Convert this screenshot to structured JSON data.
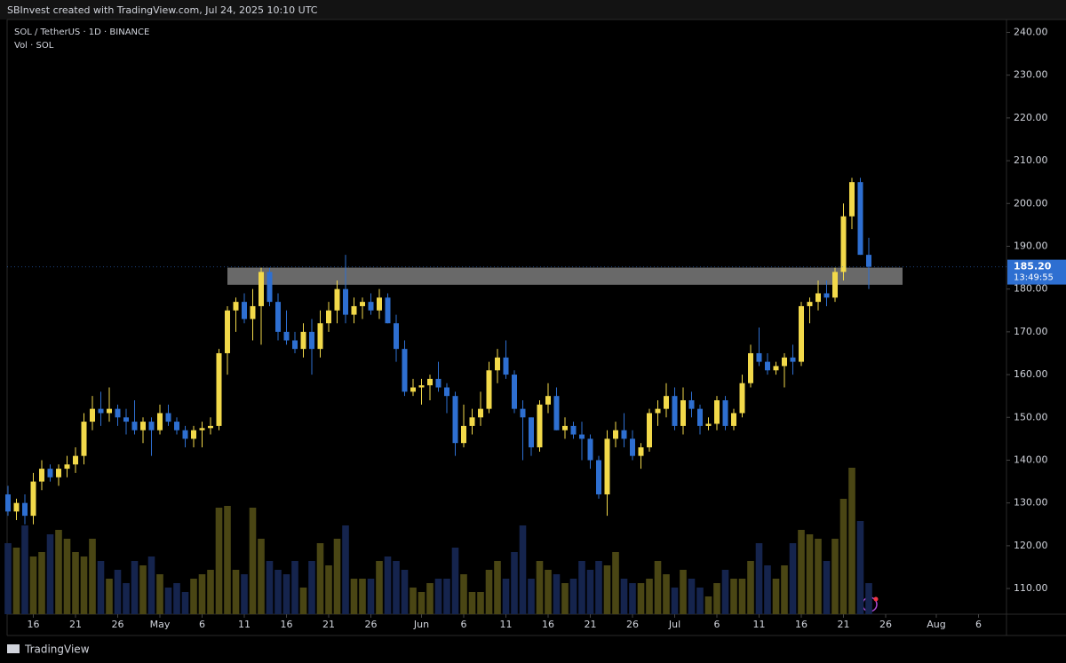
{
  "chart_data": {
    "type": "candlestick",
    "attribution": "SBInvest created with TradingView.com, Jul 24, 2025 10:10 UTC",
    "title": "SOL / TetherUS · 1D · BINANCE",
    "subtitle": "Vol · SOL",
    "brand": "TradingView",
    "up_color": "#f2d94a",
    "down_color": "#2e6fd1",
    "up_volume_color": "#4a4614",
    "down_volume_color": "#15244d",
    "x": [
      "Apr 13",
      "Apr 14",
      "Apr 15",
      "Apr 16",
      "Apr 17",
      "Apr 18",
      "Apr 19",
      "Apr 20",
      "Apr 21",
      "Apr 22",
      "Apr 23",
      "Apr 24",
      "Apr 25",
      "Apr 26",
      "Apr 27",
      "Apr 28",
      "Apr 29",
      "Apr 30",
      "May 1",
      "May 2",
      "May 3",
      "May 4",
      "May 5",
      "May 6",
      "May 7",
      "May 8",
      "May 9",
      "May 10",
      "May 11",
      "May 12",
      "May 13",
      "May 14",
      "May 15",
      "May 16",
      "May 17",
      "May 18",
      "May 19",
      "May 20",
      "May 21",
      "May 22",
      "May 23",
      "May 24",
      "May 25",
      "May 26",
      "May 27",
      "May 28",
      "May 29",
      "May 30",
      "May 31",
      "Jun 1",
      "Jun 2",
      "Jun 3",
      "Jun 4",
      "Jun 5",
      "Jun 6",
      "Jun 7",
      "Jun 8",
      "Jun 9",
      "Jun 10",
      "Jun 11",
      "Jun 12",
      "Jun 13",
      "Jun 14",
      "Jun 15",
      "Jun 16",
      "Jun 17",
      "Jun 18",
      "Jun 19",
      "Jun 20",
      "Jun 21",
      "Jun 22",
      "Jun 23",
      "Jun 24",
      "Jun 25",
      "Jun 26",
      "Jun 27",
      "Jun 28",
      "Jun 29",
      "Jun 30",
      "Jul 1",
      "Jul 2",
      "Jul 3",
      "Jul 4",
      "Jul 5",
      "Jul 6",
      "Jul 7",
      "Jul 8",
      "Jul 9",
      "Jul 10",
      "Jul 11",
      "Jul 12",
      "Jul 13",
      "Jul 14",
      "Jul 15",
      "Jul 16",
      "Jul 17",
      "Jul 18",
      "Jul 19",
      "Jul 20",
      "Jul 21",
      "Jul 22",
      "Jul 23",
      "Jul 24",
      "Jul 25",
      "Jul 26",
      "Jul 27",
      "Jul 28",
      "Jul 29",
      "Jul 30",
      "Jul 31",
      "Aug 1",
      "Aug 2",
      "Aug 3",
      "Aug 4",
      "Aug 5",
      "Aug 6",
      "Aug 7",
      "Aug 8"
    ],
    "open": [
      132,
      128,
      130,
      127,
      135,
      138,
      136,
      138,
      139,
      141,
      149,
      152,
      151,
      152,
      150,
      149,
      147,
      149,
      147,
      151,
      149,
      147,
      145,
      147,
      147.5,
      148,
      165,
      175,
      177,
      173,
      176,
      184,
      177,
      170,
      168,
      166,
      170,
      166,
      172,
      175,
      180,
      174,
      176,
      177,
      175,
      178,
      172,
      166,
      156,
      157,
      157.5,
      159,
      157,
      155,
      144,
      148,
      150,
      152,
      161,
      164,
      160,
      152,
      150,
      143,
      153,
      155,
      147,
      148,
      146,
      145,
      140,
      132,
      145,
      147,
      145,
      141,
      143,
      151,
      152,
      155,
      148,
      154,
      152,
      148,
      148.5,
      154,
      148,
      151,
      158,
      165,
      163,
      161,
      162,
      164,
      163,
      176,
      177,
      179,
      178,
      184,
      197,
      205,
      188,
      null,
      null,
      null,
      null,
      null,
      null,
      null,
      null,
      null,
      null,
      null,
      null,
      null,
      null,
      null
    ],
    "high": [
      134,
      131,
      132,
      137,
      140,
      139,
      139,
      141,
      143,
      151,
      155,
      156,
      157,
      153,
      152,
      154,
      150,
      150,
      153,
      153,
      150,
      148,
      148,
      149,
      150,
      166,
      176,
      178,
      179,
      180,
      185,
      185,
      179,
      175,
      170,
      172,
      173,
      175,
      177,
      182,
      188,
      178,
      178,
      179,
      180,
      179,
      174,
      168,
      159,
      159,
      160,
      163,
      158,
      156,
      153,
      152,
      156,
      163,
      166,
      168,
      161,
      154,
      150,
      154,
      158,
      157,
      150,
      149,
      149,
      146,
      141,
      147,
      149,
      151,
      147,
      144,
      152,
      154,
      158,
      157,
      157,
      156,
      153,
      150,
      155,
      155,
      152,
      160,
      167,
      171,
      165,
      163,
      165,
      167,
      177,
      178,
      182,
      182,
      185,
      200,
      206,
      206,
      192,
      null,
      null,
      null,
      null,
      null,
      null,
      null,
      null,
      null,
      null,
      null,
      null,
      null,
      null,
      null
    ],
    "low": [
      127,
      126,
      125,
      125,
      133,
      135,
      134,
      136,
      137,
      139,
      147,
      148,
      149,
      148,
      146,
      146,
      144,
      141,
      146,
      148,
      146,
      143,
      143,
      143,
      146,
      147,
      160,
      170,
      172,
      168,
      167,
      176,
      168,
      167,
      165,
      164,
      160,
      164,
      170,
      172,
      172,
      172,
      173,
      174,
      173,
      172,
      163,
      155,
      155,
      153,
      154,
      156,
      151,
      141,
      143,
      146,
      148,
      151,
      158,
      159,
      151,
      140,
      141,
      142,
      151,
      147,
      145,
      145,
      140,
      138,
      131,
      127,
      143,
      143,
      140,
      138,
      142,
      148,
      150,
      147,
      146,
      150,
      146,
      147,
      147,
      147,
      147,
      150,
      157,
      162,
      160,
      160,
      157,
      160,
      162,
      172,
      175,
      176,
      177,
      182,
      194,
      188,
      180,
      null,
      null,
      null,
      null,
      null,
      null,
      null,
      null,
      null,
      null,
      null,
      null,
      null,
      null,
      null
    ],
    "close": [
      128,
      130,
      127,
      135,
      138,
      136,
      138,
      139,
      141,
      149,
      152,
      151,
      152,
      150,
      149,
      147,
      149,
      147,
      151,
      149,
      147,
      145,
      147,
      147.5,
      148,
      165,
      175,
      177,
      173,
      176,
      184,
      177,
      170,
      168,
      166,
      170,
      166,
      172,
      175,
      180,
      174,
      176,
      177,
      175,
      178,
      172,
      166,
      156,
      157,
      157.5,
      159,
      157,
      155,
      144,
      148,
      150,
      152,
      161,
      164,
      160,
      152,
      150,
      143,
      153,
      155,
      147,
      148,
      146,
      145,
      140,
      132,
      145,
      147,
      145,
      141,
      143,
      151,
      152,
      155,
      148,
      154,
      152,
      148,
      148.5,
      154,
      148,
      151,
      158,
      165,
      163,
      161,
      162,
      164,
      163,
      176,
      177,
      179,
      178,
      184,
      197,
      205,
      188,
      185.2,
      null,
      null,
      null,
      null,
      null,
      null,
      null,
      null,
      null,
      null,
      null,
      null,
      null,
      null,
      null
    ],
    "volume": [
      80,
      75,
      100,
      65,
      70,
      90,
      95,
      85,
      70,
      65,
      85,
      60,
      40,
      50,
      35,
      60,
      55,
      65,
      45,
      30,
      35,
      25,
      40,
      45,
      50,
      120,
      122,
      50,
      45,
      120,
      85,
      60,
      50,
      45,
      60,
      30,
      60,
      80,
      55,
      85,
      100,
      40,
      40,
      40,
      60,
      65,
      60,
      50,
      30,
      25,
      35,
      40,
      40,
      75,
      45,
      25,
      25,
      50,
      60,
      40,
      70,
      100,
      40,
      60,
      50,
      45,
      35,
      40,
      60,
      50,
      60,
      55,
      70,
      40,
      35,
      35,
      40,
      60,
      45,
      30,
      50,
      40,
      30,
      20,
      35,
      50,
      40,
      40,
      60,
      80,
      55,
      40,
      55,
      80,
      95,
      90,
      85,
      60,
      85,
      130,
      165,
      105,
      35,
      null,
      null,
      null,
      null,
      null,
      null,
      null,
      null,
      null,
      null,
      null,
      null,
      null,
      null,
      null
    ],
    "vlim": [
      0,
      170
    ],
    "ylim": [
      104,
      243
    ],
    "yticks": [
      {
        "value": 110,
        "label": "110.00"
      },
      {
        "value": 120,
        "label": "120.00"
      },
      {
        "value": 130,
        "label": "130.00"
      },
      {
        "value": 140,
        "label": "140.00"
      },
      {
        "value": 150,
        "label": "150.00"
      },
      {
        "value": 160,
        "label": "160.00"
      },
      {
        "value": 170,
        "label": "170.00"
      },
      {
        "value": 180,
        "label": "180.00"
      },
      {
        "value": 190,
        "label": "190.00"
      },
      {
        "value": 200,
        "label": "200.00"
      },
      {
        "value": 210,
        "label": "210.00"
      },
      {
        "value": 220,
        "label": "220.00"
      },
      {
        "value": 230,
        "label": "230.00"
      },
      {
        "value": 240,
        "label": "240.00"
      }
    ],
    "xticks": [
      {
        "value": "Apr 16",
        "label": "16"
      },
      {
        "value": "Apr 21",
        "label": "21"
      },
      {
        "value": "Apr 26",
        "label": "26"
      },
      {
        "value": "May 1",
        "label": "May"
      },
      {
        "value": "May 6",
        "label": "6"
      },
      {
        "value": "May 11",
        "label": "11"
      },
      {
        "value": "May 16",
        "label": "16"
      },
      {
        "value": "May 21",
        "label": "21"
      },
      {
        "value": "May 26",
        "label": "26"
      },
      {
        "value": "Jun 1",
        "label": "Jun"
      },
      {
        "value": "Jun 6",
        "label": "6"
      },
      {
        "value": "Jun 11",
        "label": "11"
      },
      {
        "value": "Jun 16",
        "label": "16"
      },
      {
        "value": "Jun 21",
        "label": "21"
      },
      {
        "value": "Jun 26",
        "label": "26"
      },
      {
        "value": "Jul 1",
        "label": "Jul"
      },
      {
        "value": "Jul 6",
        "label": "6"
      },
      {
        "value": "Jul 11",
        "label": "11"
      },
      {
        "value": "Jul 16",
        "label": "16"
      },
      {
        "value": "Jul 21",
        "label": "21"
      },
      {
        "value": "Jul 26",
        "label": "26"
      },
      {
        "value": "Aug 1",
        "label": "Aug"
      },
      {
        "value": "Aug 6",
        "label": "6"
      }
    ],
    "zone": {
      "from": "May 9",
      "to": "Jul 28",
      "low": 181,
      "high": 185,
      "color": "#8c8c8c"
    },
    "price_marker": {
      "value": 185.2,
      "label": "185.20",
      "countdown": "13:49:55"
    }
  }
}
